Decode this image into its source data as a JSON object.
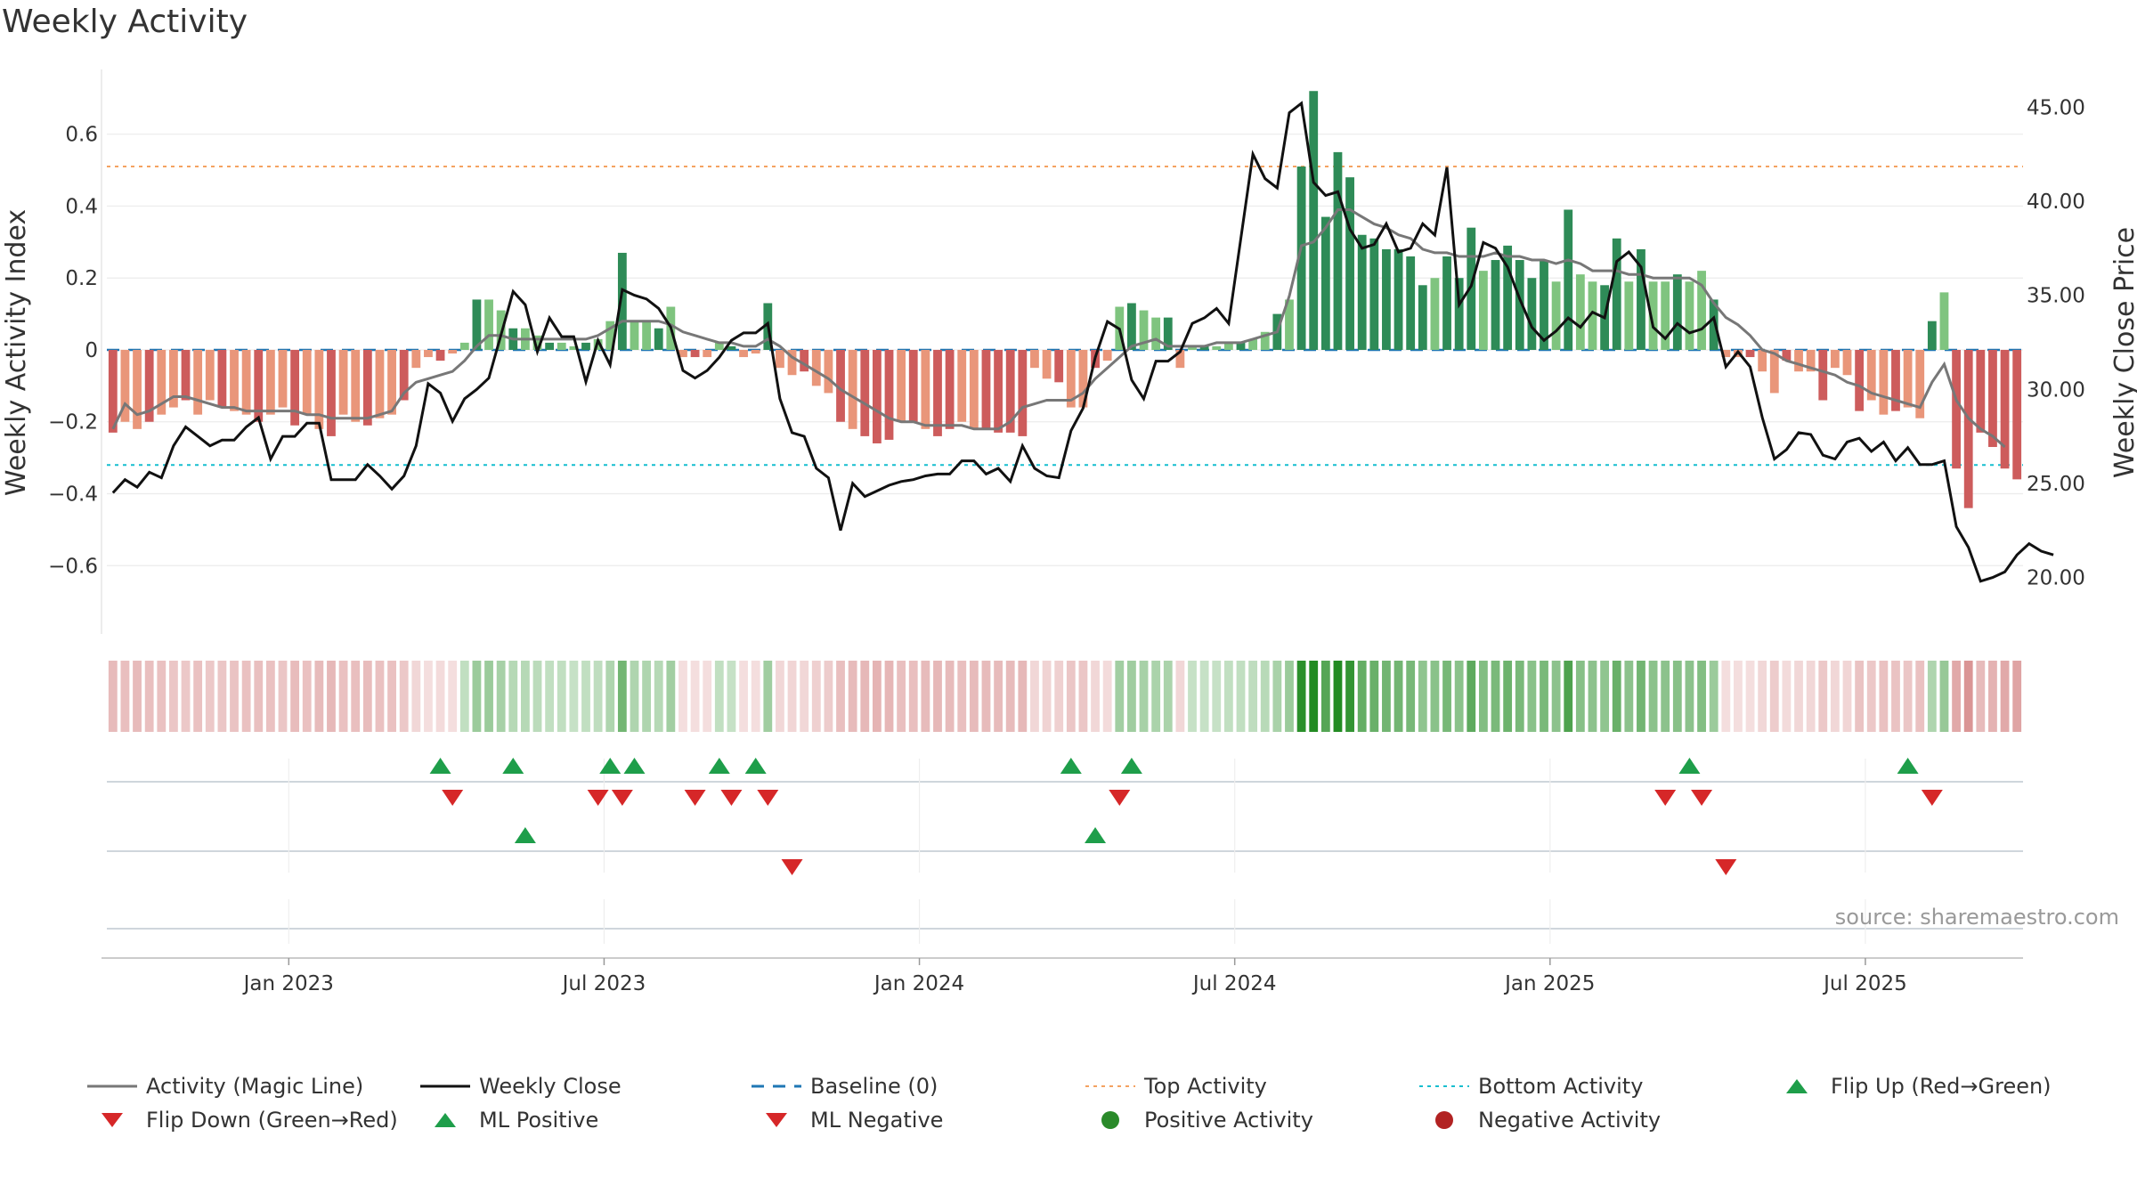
{
  "title": "Weekly Activity",
  "source_note": "source: sharemaestro.com",
  "chart_data": {
    "type": "bar",
    "title": "Weekly Activity",
    "ylabel": "Weekly Activity Index",
    "y2label": "Weekly Close Price",
    "ylim": [
      -0.79,
      0.78
    ],
    "y2lim": [
      17.0,
      47.0
    ],
    "yticks": [
      -0.6,
      -0.4,
      -0.2,
      0,
      0.2,
      0.4,
      0.6
    ],
    "ytick_labels": [
      "−0.6",
      "−0.4",
      "−0.2",
      "0",
      "0.2",
      "0.4",
      "0.6"
    ],
    "y2ticks": [
      20,
      25,
      30,
      35,
      40,
      45
    ],
    "y2tick_labels": [
      "20.00",
      "25.00",
      "30.00",
      "35.00",
      "40.00",
      "45.00"
    ],
    "xtick_labels": [
      "Jan 2023",
      "Jul 2023",
      "Jan 2024",
      "Jul 2024",
      "Jan 2025",
      "Jul 2025"
    ],
    "xtick_weeks": [
      15,
      41,
      67,
      93,
      119,
      145
    ],
    "top_level": 0.51,
    "bottom_level": -0.32,
    "activity": [
      -0.23,
      -0.2,
      -0.22,
      -0.2,
      -0.18,
      -0.16,
      -0.14,
      -0.18,
      -0.14,
      -0.16,
      -0.17,
      -0.18,
      -0.2,
      -0.18,
      -0.16,
      -0.21,
      -0.18,
      -0.22,
      -0.24,
      -0.18,
      -0.2,
      -0.21,
      -0.19,
      -0.18,
      -0.14,
      -0.05,
      -0.02,
      -0.03,
      -0.01,
      0.02,
      0.14,
      0.14,
      0.11,
      0.06,
      0.06,
      0.04,
      0.02,
      0.02,
      0.01,
      0.02,
      0.03,
      0.08,
      0.27,
      0.08,
      0.08,
      0.06,
      0.12,
      -0.02,
      -0.02,
      -0.02,
      0.02,
      0.01,
      -0.02,
      -0.01,
      0.13,
      -0.05,
      -0.07,
      -0.06,
      -0.1,
      -0.12,
      -0.2,
      -0.22,
      -0.24,
      -0.26,
      -0.25,
      -0.2,
      -0.2,
      -0.22,
      -0.24,
      -0.22,
      -0.2,
      -0.22,
      -0.22,
      -0.23,
      -0.23,
      -0.24,
      -0.05,
      -0.08,
      -0.09,
      -0.16,
      -0.16,
      -0.05,
      -0.03,
      0.12,
      0.13,
      0.11,
      0.09,
      0.09,
      -0.05,
      0.01,
      0.01,
      0.01,
      0.02,
      0.02,
      0.03,
      0.05,
      0.1,
      0.14,
      0.51,
      0.72,
      0.37,
      0.55,
      0.48,
      0.32,
      0.31,
      0.28,
      0.28,
      0.26,
      0.18,
      0.2,
      0.26,
      0.2,
      0.34,
      0.22,
      0.25,
      0.29,
      0.25,
      0.2,
      0.25,
      0.19,
      0.39,
      0.21,
      0.19,
      0.18,
      0.31,
      0.19,
      0.28,
      0.19,
      0.19,
      0.21,
      0.19,
      0.22,
      0.14,
      -0.02,
      -0.02,
      -0.02,
      -0.06,
      -0.12,
      -0.03,
      -0.06,
      -0.06,
      -0.14,
      -0.05,
      -0.07,
      -0.17,
      -0.14,
      -0.18,
      -0.17,
      -0.16,
      -0.19,
      0.08,
      0.16,
      -0.33,
      -0.44,
      -0.23,
      -0.27,
      -0.33,
      -0.36
    ],
    "magic_line": [
      -0.22,
      -0.15,
      -0.18,
      -0.17,
      -0.15,
      -0.13,
      -0.13,
      -0.14,
      -0.15,
      -0.16,
      -0.16,
      -0.17,
      -0.17,
      -0.17,
      -0.17,
      -0.17,
      -0.18,
      -0.18,
      -0.19,
      -0.19,
      -0.19,
      -0.19,
      -0.18,
      -0.17,
      -0.12,
      -0.09,
      -0.08,
      -0.07,
      -0.06,
      -0.03,
      0.01,
      0.04,
      0.04,
      0.03,
      0.03,
      0.03,
      0.03,
      0.03,
      0.03,
      0.03,
      0.04,
      0.06,
      0.08,
      0.08,
      0.08,
      0.08,
      0.07,
      0.05,
      0.04,
      0.03,
      0.02,
      0.02,
      0.01,
      0.01,
      0.03,
      0.01,
      -0.02,
      -0.04,
      -0.06,
      -0.08,
      -0.11,
      -0.13,
      -0.15,
      -0.17,
      -0.19,
      -0.2,
      -0.2,
      -0.21,
      -0.21,
      -0.21,
      -0.21,
      -0.22,
      -0.22,
      -0.22,
      -0.2,
      -0.16,
      -0.15,
      -0.14,
      -0.14,
      -0.14,
      -0.12,
      -0.08,
      -0.05,
      -0.02,
      0.01,
      0.02,
      0.03,
      0.01,
      0.01,
      0.01,
      0.01,
      0.02,
      0.02,
      0.02,
      0.03,
      0.04,
      0.05,
      0.15,
      0.29,
      0.3,
      0.34,
      0.39,
      0.39,
      0.37,
      0.35,
      0.34,
      0.32,
      0.31,
      0.28,
      0.27,
      0.27,
      0.26,
      0.26,
      0.26,
      0.27,
      0.26,
      0.26,
      0.25,
      0.25,
      0.24,
      0.25,
      0.24,
      0.22,
      0.22,
      0.22,
      0.21,
      0.21,
      0.2,
      0.2,
      0.2,
      0.2,
      0.18,
      0.13,
      0.09,
      0.07,
      0.04,
      0.0,
      -0.01,
      -0.03,
      -0.04,
      -0.05,
      -0.06,
      -0.07,
      -0.09,
      -0.1,
      -0.12,
      -0.13,
      -0.14,
      -0.15,
      -0.16,
      -0.09,
      -0.04,
      -0.14,
      -0.19,
      -0.22,
      -0.24,
      -0.27
    ],
    "weekly_close": [
      24.5,
      25.2,
      24.8,
      25.6,
      25.3,
      27.0,
      28.0,
      27.5,
      27.0,
      27.3,
      27.3,
      28.0,
      28.5,
      26.3,
      27.5,
      27.5,
      28.2,
      28.2,
      25.2,
      25.2,
      25.2,
      26.0,
      25.4,
      24.7,
      25.4,
      27.0,
      30.3,
      29.8,
      28.3,
      29.5,
      30.0,
      30.6,
      32.9,
      35.2,
      34.5,
      32.0,
      33.8,
      32.8,
      32.8,
      30.4,
      32.6,
      31.3,
      35.3,
      35.0,
      34.8,
      34.3,
      33.3,
      31.0,
      30.6,
      31.0,
      31.7,
      32.6,
      33.0,
      33.0,
      33.5,
      29.5,
      27.7,
      27.5,
      25.8,
      25.3,
      22.5,
      25.0,
      24.3,
      24.6,
      24.9,
      25.1,
      25.2,
      25.4,
      25.5,
      25.5,
      26.2,
      26.2,
      25.5,
      25.8,
      25.1,
      27.0,
      25.8,
      25.4,
      25.3,
      27.8,
      29.0,
      31.7,
      33.6,
      33.2,
      30.5,
      29.5,
      31.5,
      31.5,
      32.0,
      33.5,
      33.8,
      34.3,
      33.5,
      38.0,
      42.5,
      41.2,
      40.7,
      44.7,
      45.2,
      41.0,
      40.3,
      40.5,
      38.5,
      37.5,
      37.7,
      38.8,
      37.3,
      37.5,
      38.8,
      38.2,
      41.8,
      34.5,
      35.5,
      37.8,
      37.5,
      36.5,
      34.8,
      33.3,
      32.6,
      33.1,
      33.8,
      33.3,
      34.1,
      33.8,
      36.8,
      37.3,
      36.5,
      33.3,
      32.7,
      33.5,
      33.0,
      33.2,
      33.8,
      31.2,
      32.0,
      31.2,
      28.5,
      26.3,
      26.8,
      27.7,
      27.6,
      26.5,
      26.3,
      27.2,
      27.4,
      26.7,
      27.2,
      26.2,
      26.9,
      26.0,
      26.0,
      26.2,
      22.7,
      21.6,
      19.8,
      20.0,
      20.3,
      21.2,
      21.8,
      21.4,
      21.2
    ],
    "flip_up_weeks": [
      27,
      33,
      41,
      43,
      50,
      53,
      79,
      84,
      130,
      148
    ],
    "flip_down_weeks": [
      28,
      40,
      42,
      48,
      51,
      54,
      83,
      128,
      131,
      150
    ],
    "ml_positive_weeks": [
      34,
      81
    ],
    "ml_negative_weeks": [
      56,
      133
    ],
    "legend": [
      {
        "label": "Activity (Magic Line)",
        "symbol": "line",
        "color": "#777777"
      },
      {
        "label": "Weekly Close",
        "symbol": "line",
        "color": "#111111"
      },
      {
        "label": "Baseline (0)",
        "symbol": "dash",
        "color": "#1f77b4"
      },
      {
        "label": "Top Activity",
        "symbol": "dot-line",
        "color": "#f4a261"
      },
      {
        "label": "Bottom Activity",
        "symbol": "dot-line",
        "color": "#17becf"
      },
      {
        "label": "Flip Up (Red→Green)",
        "symbol": "tri-up",
        "color": "#1e9e4a"
      },
      {
        "label": "Flip Down (Green→Red)",
        "symbol": "tri-down",
        "color": "#d62728"
      },
      {
        "label": "ML Positive",
        "symbol": "tri-up",
        "color": "#1e9e4a"
      },
      {
        "label": "ML Negative",
        "symbol": "tri-down",
        "color": "#d62728"
      },
      {
        "label": "Positive Activity",
        "symbol": "circle",
        "color": "#2a8a2a"
      },
      {
        "label": "Negative Activity",
        "symbol": "circle",
        "color": "#b22222"
      }
    ]
  }
}
